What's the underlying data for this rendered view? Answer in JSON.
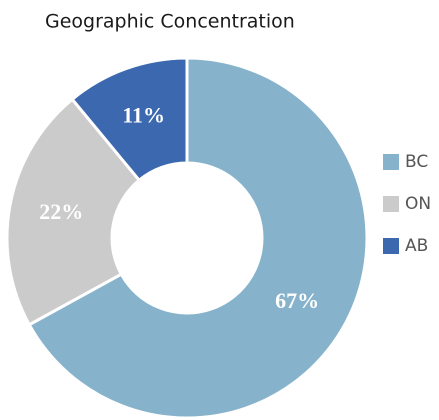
{
  "chart_data": {
    "type": "donut",
    "title": "Geographic Concentration",
    "categories": [
      "BC",
      "ON",
      "AB"
    ],
    "values": [
      67,
      22,
      11
    ],
    "value_labels": [
      "67%",
      "22%",
      "11%"
    ],
    "colors": [
      "#86b3cb",
      "#cbcbcb",
      "#3b68ae"
    ],
    "legend": "right"
  }
}
